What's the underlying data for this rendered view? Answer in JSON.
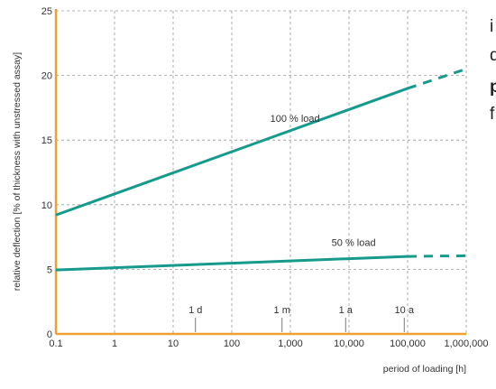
{
  "chart_data": {
    "type": "line",
    "x_scale": "log",
    "xlabel": "period of loading [h]",
    "ylabel": "relative deflection [% of thickness with unstressed assay]",
    "xlim": [
      0.1,
      1000000
    ],
    "ylim": [
      0,
      25
    ],
    "x_ticks": [
      "0.1",
      "1",
      "10",
      "100",
      "1,000",
      "10,000",
      "100,000",
      "1,000,000"
    ],
    "y_ticks": [
      "0",
      "5",
      "10",
      "15",
      "20",
      "25"
    ],
    "grid": true,
    "series": [
      {
        "name": "100 % load",
        "color": "#159a8c",
        "x": [
          0.1,
          100000
        ],
        "y": [
          9.2,
          19.0
        ],
        "extrapolated": {
          "x": [
            100000,
            1000000
          ],
          "y": [
            19.0,
            20.5
          ]
        }
      },
      {
        "name": "50 % load",
        "color": "#159a8c",
        "x": [
          0.1,
          100000
        ],
        "y": [
          4.95,
          6.0
        ],
        "extrapolated": {
          "x": [
            100000,
            1000000
          ],
          "y": [
            6.0,
            6.05
          ]
        }
      }
    ],
    "time_markers": [
      {
        "label": "1 d",
        "x": 24
      },
      {
        "label": "1 m",
        "x": 720
      },
      {
        "label": "1 a",
        "x": 8760
      },
      {
        "label": "10 a",
        "x": 87600
      }
    ],
    "colors": {
      "axis": "#f0a030",
      "grid": "#9a9a9a",
      "line": "#159a8c"
    }
  },
  "side_text": [
    "i",
    "d",
    "p",
    "f"
  ]
}
